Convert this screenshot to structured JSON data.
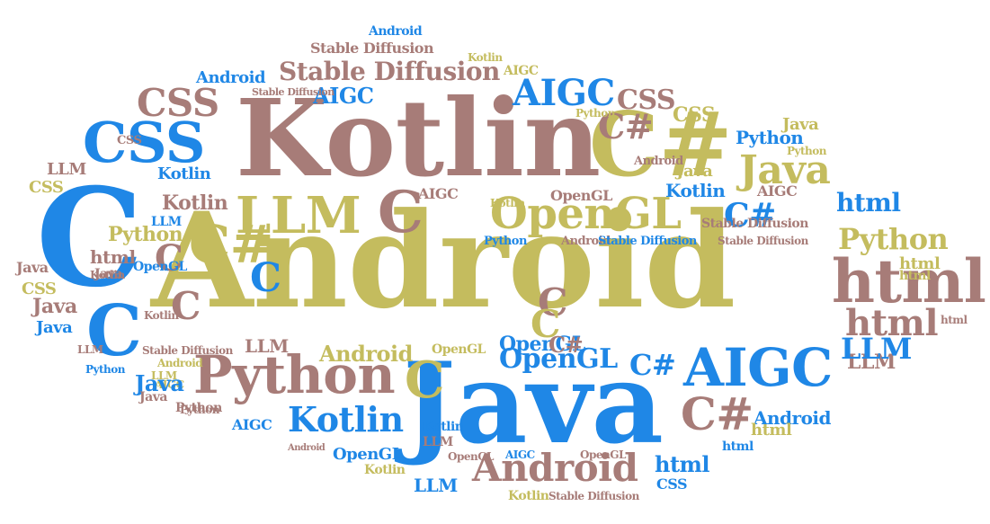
{
  "palette": {
    "blue": "#1f87e6",
    "mauve": "#a77c78",
    "olive": "#c4bc5e"
  },
  "words": [
    {
      "text": "Android",
      "color": "olive"
    },
    {
      "text": "Kotlin",
      "color": "mauve"
    },
    {
      "text": "Java",
      "color": "blue"
    },
    {
      "text": "C",
      "color": "blue"
    },
    {
      "text": "C#",
      "color": "olive"
    },
    {
      "text": "CSS",
      "color": "blue"
    },
    {
      "text": "html",
      "color": "mauve"
    },
    {
      "text": "LLM",
      "color": "olive"
    },
    {
      "text": "Python",
      "color": "mauve"
    },
    {
      "text": "AIGC",
      "color": "blue"
    },
    {
      "text": "OpenGL",
      "color": "olive"
    },
    {
      "text": "Stable Diffusion",
      "color": "mauve"
    },
    {
      "text": "Java",
      "color": "olive"
    },
    {
      "text": "AIGC",
      "color": "blue"
    },
    {
      "text": "CSS",
      "color": "mauve"
    },
    {
      "text": "C",
      "color": "mauve"
    },
    {
      "text": "Kotlin",
      "color": "blue"
    },
    {
      "text": "Android",
      "color": "mauve"
    },
    {
      "text": "C",
      "color": "blue"
    },
    {
      "text": "html",
      "color": "mauve"
    },
    {
      "text": "LLM",
      "color": "mauve"
    },
    {
      "text": "Python",
      "color": "olive"
    },
    {
      "text": "OpenGL",
      "color": "blue"
    },
    {
      "text": "C#",
      "color": "blue"
    },
    {
      "text": "C#",
      "color": "mauve"
    },
    {
      "text": "C#",
      "color": "olive"
    },
    {
      "text": "C",
      "color": "olive"
    },
    {
      "text": "C",
      "color": "mauve"
    },
    {
      "text": "C",
      "color": "mauve"
    },
    {
      "text": "Kotlin",
      "color": "mauve"
    },
    {
      "text": "AIGC",
      "color": "blue"
    },
    {
      "text": "CSS",
      "color": "mauve"
    },
    {
      "text": "Android",
      "color": "blue"
    },
    {
      "text": "Stable Diffusion",
      "color": "mauve"
    },
    {
      "text": "html",
      "color": "blue"
    },
    {
      "text": "LLM",
      "color": "blue"
    },
    {
      "text": "CSS",
      "color": "olive"
    },
    {
      "text": "Python",
      "color": "blue"
    },
    {
      "text": "Java",
      "color": "olive"
    },
    {
      "text": "C#",
      "color": "mauve"
    },
    {
      "text": "C#",
      "color": "blue"
    },
    {
      "text": "Python",
      "color": "olive"
    },
    {
      "text": "html",
      "color": "blue"
    },
    {
      "text": "Kotlin",
      "color": "blue"
    },
    {
      "text": "Android",
      "color": "olive"
    },
    {
      "text": "OpenGL",
      "color": "blue"
    },
    {
      "text": "LLM",
      "color": "mauve"
    },
    {
      "text": "C",
      "color": "blue"
    },
    {
      "text": "C",
      "color": "mauve"
    },
    {
      "text": "C",
      "color": "olive"
    },
    {
      "text": "html",
      "color": "mauve"
    },
    {
      "text": "Kotlin",
      "color": "olive"
    },
    {
      "text": "Android",
      "color": "blue"
    },
    {
      "text": "Stable Diffusion",
      "color": "mauve"
    },
    {
      "text": "AIGC",
      "color": "olive"
    },
    {
      "text": "Kotlin",
      "color": "olive"
    },
    {
      "text": "Android",
      "color": "blue"
    },
    {
      "text": "AIGC",
      "color": "mauve"
    },
    {
      "text": "Stable Diffusion",
      "color": "mauve"
    },
    {
      "text": "Python",
      "color": "mauve"
    },
    {
      "text": "OpenGL",
      "color": "olive"
    },
    {
      "text": "Python",
      "color": "blue"
    },
    {
      "text": "Android",
      "color": "mauve"
    },
    {
      "text": "Java",
      "color": "mauve"
    },
    {
      "text": "Kotlin",
      "color": "blue"
    },
    {
      "text": "AIGC",
      "color": "mauve"
    },
    {
      "text": "OpenGL",
      "color": "mauve"
    },
    {
      "text": "OpenGL",
      "color": "blue"
    },
    {
      "text": "Android",
      "color": "mauve"
    },
    {
      "text": "Stable Diffusion",
      "color": "blue"
    },
    {
      "text": "Stable Diffusion",
      "color": "mauve"
    },
    {
      "text": "LLM",
      "color": "olive"
    },
    {
      "text": "CSS",
      "color": "mauve"
    },
    {
      "text": "Python",
      "color": "olive"
    },
    {
      "text": "LLM",
      "color": "blue"
    },
    {
      "text": "Kotlin",
      "color": "mauve"
    },
    {
      "text": "html",
      "color": "mauve"
    },
    {
      "text": "Kotlin",
      "color": "mauve"
    },
    {
      "text": "Java",
      "color": "mauve"
    },
    {
      "text": "CSS",
      "color": "olive"
    },
    {
      "text": "Java",
      "color": "mauve"
    },
    {
      "text": "Java",
      "color": "blue"
    },
    {
      "text": "Java",
      "color": "olive"
    },
    {
      "text": "Python",
      "color": "olive"
    },
    {
      "text": "html",
      "color": "olive"
    },
    {
      "text": "html",
      "color": "olive"
    },
    {
      "text": "LLM",
      "color": "mauve"
    },
    {
      "text": "LLM",
      "color": "mauve"
    },
    {
      "text": "CSS",
      "color": "olive"
    },
    {
      "text": "Stable Diffusion",
      "color": "mauve"
    },
    {
      "text": "LLM",
      "color": "mauve"
    },
    {
      "text": "Android",
      "color": "olive"
    },
    {
      "text": "OpenGL",
      "color": "mauve"
    },
    {
      "text": "Python",
      "color": "blue"
    },
    {
      "text": "AIGC",
      "color": "olive"
    },
    {
      "text": "Kotlin",
      "color": "blue"
    },
    {
      "text": "Python",
      "color": "mauve"
    },
    {
      "text": "AIGC",
      "color": "blue"
    },
    {
      "text": "Android",
      "color": "mauve"
    },
    {
      "text": "OpenGL",
      "color": "blue"
    },
    {
      "text": "Kotlin",
      "color": "olive"
    },
    {
      "text": "AIGC",
      "color": "blue"
    },
    {
      "text": "OpenGL",
      "color": "mauve"
    },
    {
      "text": "LLM",
      "color": "blue"
    },
    {
      "text": "html",
      "color": "blue"
    },
    {
      "text": "CSS",
      "color": "blue"
    },
    {
      "text": "html",
      "color": "olive"
    },
    {
      "text": "Kotlin",
      "color": "olive"
    },
    {
      "text": "Stable Diffusion",
      "color": "mauve"
    },
    {
      "text": "Java",
      "color": "blue"
    },
    {
      "text": "Java",
      "color": "mauve"
    },
    {
      "text": "C#",
      "color": "mauve"
    }
  ]
}
